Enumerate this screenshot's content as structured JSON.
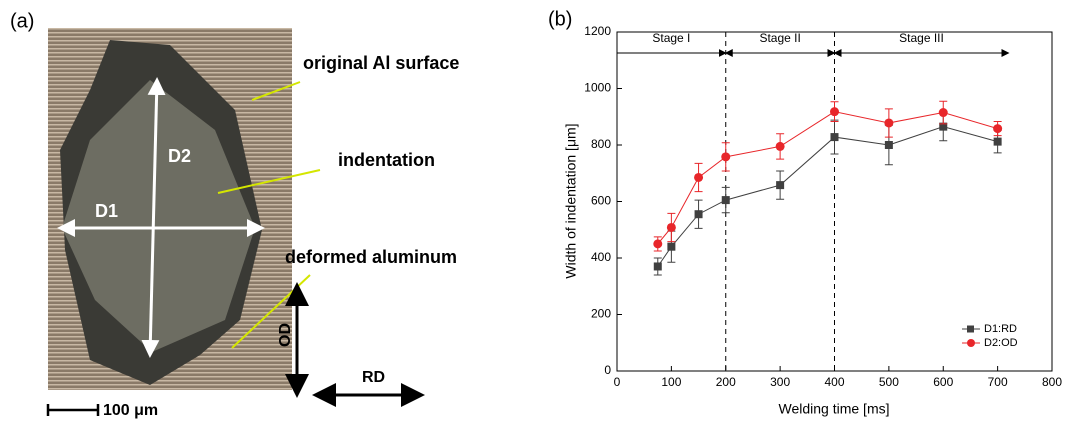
{
  "panel_a": {
    "label": "(a)",
    "annotations": [
      "original Al surface",
      "indentation",
      "deformed aluminum"
    ],
    "d1": "D1",
    "d2": "D2",
    "od": "OD",
    "rd": "RD",
    "scale_bar": "100 μm"
  },
  "chart_data": {
    "type": "line",
    "panel_label": "(b)",
    "x_label": "Welding time [ms]",
    "y_label": "Width of indentation [μm]",
    "x": [
      75,
      100,
      150,
      200,
      300,
      400,
      500,
      600,
      700
    ],
    "series": [
      {
        "name": "D1:RD",
        "color": "#404040",
        "marker": "square",
        "values": [
          370,
          440,
          555,
          605,
          658,
          828,
          800,
          865,
          812
        ],
        "errors": [
          30,
          55,
          50,
          45,
          50,
          60,
          70,
          50,
          40
        ]
      },
      {
        "name": "D2:OD",
        "color": "#e8262a",
        "marker": "circle",
        "values": [
          450,
          508,
          685,
          758,
          795,
          918,
          878,
          915,
          858
        ],
        "errors": [
          25,
          50,
          50,
          50,
          45,
          35,
          50,
          40,
          25
        ]
      }
    ],
    "xlim": [
      0,
      800
    ],
    "xticks": [
      0,
      100,
      200,
      300,
      400,
      500,
      600,
      700,
      800
    ],
    "ylim": [
      0,
      1200
    ],
    "yticks": [
      0,
      200,
      400,
      600,
      800,
      1000,
      1200
    ],
    "stages": [
      {
        "label": "Stage I",
        "start": 0,
        "end": 200
      },
      {
        "label": "Stage II",
        "start": 200,
        "end": 400
      },
      {
        "label": "Stage III",
        "start": 400,
        "end": 720
      }
    ],
    "legend": "lower right"
  }
}
